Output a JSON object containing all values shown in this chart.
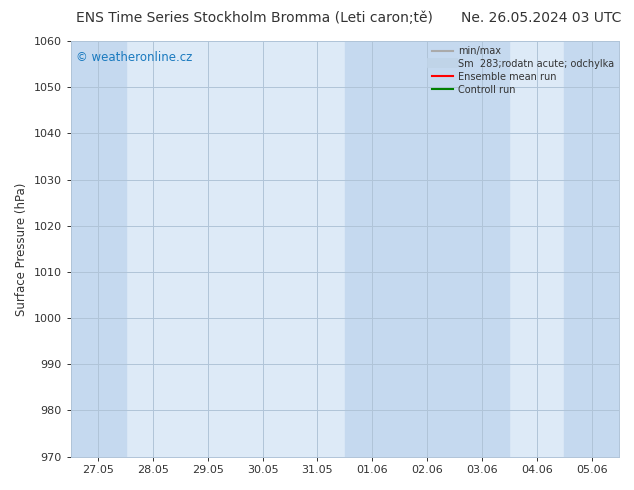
{
  "title_left": "ENS Time Series Stockholm Bromma (Leti caron;tě)",
  "title_right": "Ne. 26.05.2024 03 UTC",
  "ylabel": "Surface Pressure (hPa)",
  "ylim": [
    970,
    1060
  ],
  "yticks": [
    970,
    980,
    990,
    1000,
    1010,
    1020,
    1030,
    1040,
    1050,
    1060
  ],
  "xtick_labels": [
    "27.05",
    "28.05",
    "29.05",
    "30.05",
    "31.05",
    "01.06",
    "02.06",
    "03.06",
    "04.06",
    "05.06"
  ],
  "background_color": "#ffffff",
  "plot_bg_color": "#ddeaf7",
  "shaded_band_color": "#c5d9ef",
  "shaded_columns": [
    0,
    5,
    6,
    7,
    9
  ],
  "watermark_text": "© weatheronline.cz",
  "watermark_color": "#1a7abf",
  "legend_entries": [
    {
      "label": "min/max",
      "color": "#aaaaaa",
      "lw": 1.5
    },
    {
      "label": "Sm  283;rodatn acute; odchylka",
      "color": "#c0d4e8",
      "lw": 7
    },
    {
      "label": "Ensemble mean run",
      "color": "#ff0000",
      "lw": 1.5
    },
    {
      "label": "Controll run",
      "color": "#008000",
      "lw": 1.5
    }
  ],
  "grid_color": "#b0c4d8",
  "tick_color": "#333333",
  "font_color": "#333333",
  "title_fontsize": 10,
  "axis_fontsize": 8.5,
  "tick_fontsize": 8
}
